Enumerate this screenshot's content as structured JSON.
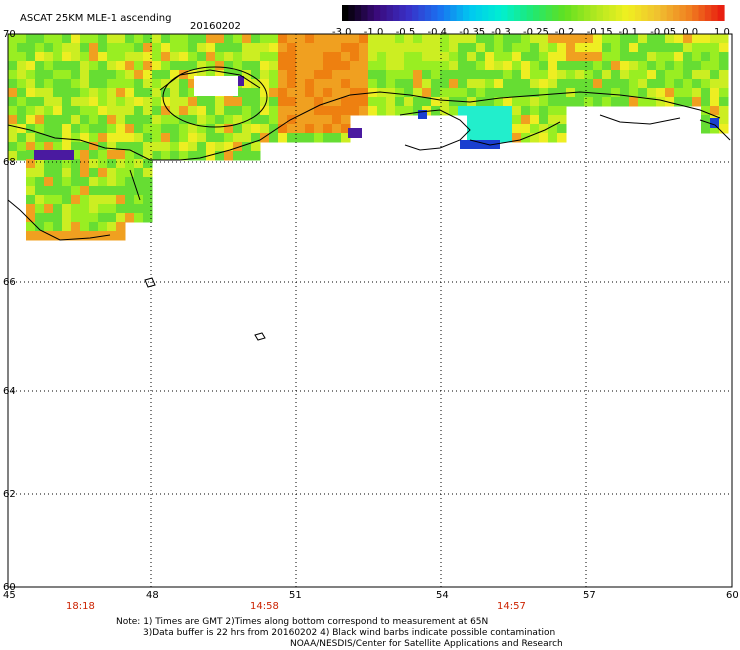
{
  "header": {
    "title": "ASCAT 25KM MLE-1 ascending",
    "date": "20160202"
  },
  "colorbar": {
    "labels": [
      "-3.0",
      "-1.0",
      "-0.5",
      "-0.4",
      "-0.35",
      "-0.3",
      "-0.25",
      "-0.2",
      "-0.15",
      "-0.1",
      "-0.05",
      "0.0",
      "1.0"
    ],
    "colors": [
      "#000000",
      "#3a0a7a",
      "#3a2fc6",
      "#1a70f0",
      "#00c8f0",
      "#00f0d0",
      "#20e870",
      "#60e020",
      "#b0e820",
      "#f0f020",
      "#f0c030",
      "#f08020",
      "#e82010"
    ]
  },
  "axes": {
    "lat_labels": [
      "70",
      "68",
      "66",
      "64",
      "62",
      "60"
    ],
    "lon_labels": [
      "45",
      "48",
      "51",
      "54",
      "57",
      "60"
    ]
  },
  "times": [
    "18:18",
    "14:58",
    "14:57"
  ],
  "notes": {
    "line1": "Note: 1) Times are GMT 2)Times along bottom correspond to measurement at 65N",
    "line2": "3)Data buffer is 22 hrs from 20160202 4) Black wind barbs indicate possible contamination",
    "line3": "NOAA/NESDIS/Center for Satellite Applications and Research"
  },
  "palette": {
    "green": "#66dd33",
    "light_green": "#99ee22",
    "yellow_green": "#ccee22",
    "yellow": "#eeee22",
    "orange": "#f0a020",
    "dark_orange": "#ee8010",
    "cyan": "#22eecc",
    "blue": "#1a3fd0",
    "purple": "#4a1aa0"
  }
}
